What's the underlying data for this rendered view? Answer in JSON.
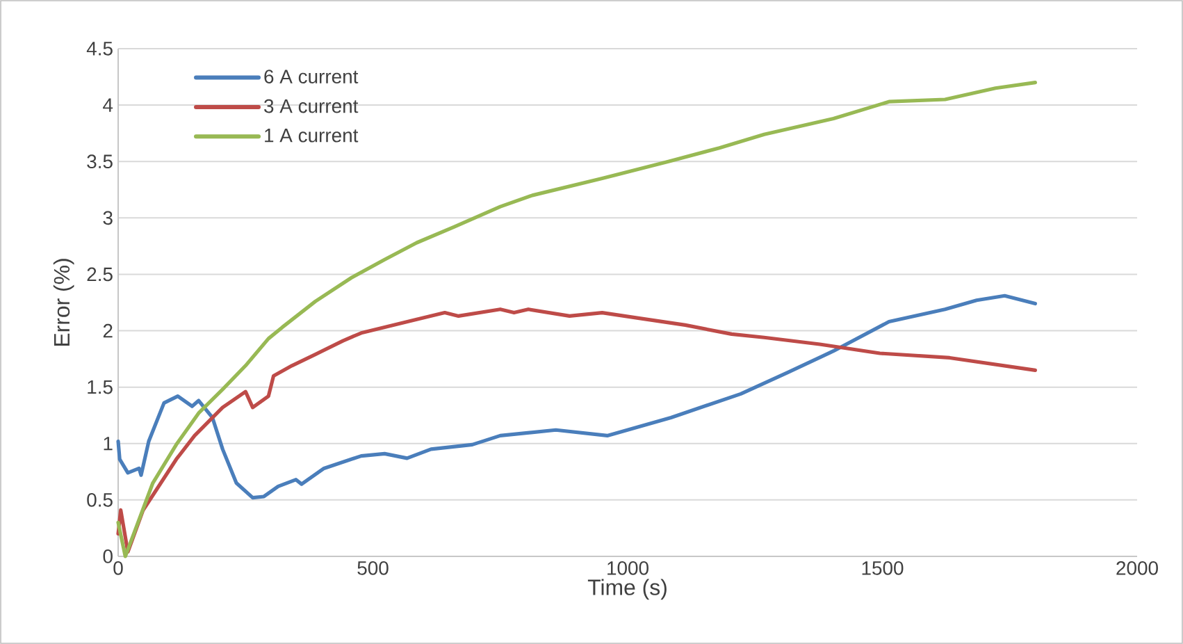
{
  "chart_data": {
    "type": "line",
    "xlabel": "Time (s)",
    "ylabel": "Error (%)",
    "xlim": [
      0,
      2000
    ],
    "ylim": [
      0,
      4.5
    ],
    "xticks": [
      0,
      500,
      1000,
      1500,
      2000
    ],
    "yticks": [
      0,
      0.5,
      1,
      1.5,
      2,
      2.5,
      3,
      3.5,
      4,
      4.5
    ],
    "grid": "y",
    "legend": "top left",
    "marker": "none",
    "line_style": "solid",
    "series": [
      {
        "name": "6 A current",
        "color": "#4a7ebb",
        "x": [
          0,
          3,
          19,
          41,
          45,
          60,
          90,
          117,
          145,
          158,
          185,
          205,
          232,
          264,
          286,
          314,
          349,
          360,
          404,
          477,
          523,
          567,
          614,
          695,
          750,
          859,
          960,
          1085,
          1222,
          1314,
          1404,
          1513,
          1623,
          1685,
          1740,
          1800
        ],
        "values": [
          1.02,
          0.86,
          0.74,
          0.78,
          0.72,
          1.02,
          1.36,
          1.42,
          1.33,
          1.38,
          1.23,
          0.95,
          0.65,
          0.52,
          0.53,
          0.62,
          0.68,
          0.64,
          0.78,
          0.89,
          0.91,
          0.87,
          0.95,
          0.99,
          1.07,
          1.12,
          1.07,
          1.23,
          1.44,
          1.63,
          1.82,
          2.08,
          2.19,
          2.27,
          2.31,
          2.24
        ]
      },
      {
        "name": "3 A current",
        "color": "#be4b48",
        "x": [
          0,
          5,
          19,
          49,
          114,
          150,
          205,
          250,
          264,
          295,
          305,
          341,
          387,
          441,
          477,
          586,
          641,
          668,
          750,
          777,
          805,
          886,
          950,
          1023,
          1113,
          1204,
          1268,
          1377,
          1495,
          1632,
          1800
        ],
        "values": [
          0.2,
          0.41,
          0.04,
          0.41,
          0.86,
          1.07,
          1.32,
          1.46,
          1.32,
          1.42,
          1.6,
          1.69,
          1.79,
          1.91,
          1.98,
          2.1,
          2.16,
          2.13,
          2.19,
          2.16,
          2.19,
          2.13,
          2.16,
          2.11,
          2.05,
          1.97,
          1.94,
          1.88,
          1.8,
          1.76,
          1.65
        ]
      },
      {
        "name": "1 A current",
        "color": "#98b954",
        "x": [
          0,
          14,
          68,
          114,
          158,
          205,
          250,
          295,
          322,
          387,
          458,
          523,
          586,
          659,
          750,
          813,
          950,
          1080,
          1180,
          1268,
          1404,
          1513,
          1623,
          1722,
          1800
        ],
        "values": [
          0.3,
          0.0,
          0.65,
          0.99,
          1.27,
          1.48,
          1.69,
          1.93,
          2.03,
          2.26,
          2.47,
          2.63,
          2.78,
          2.92,
          3.1,
          3.2,
          3.35,
          3.5,
          3.62,
          3.74,
          3.88,
          4.03,
          4.05,
          4.15,
          4.2
        ]
      }
    ]
  }
}
